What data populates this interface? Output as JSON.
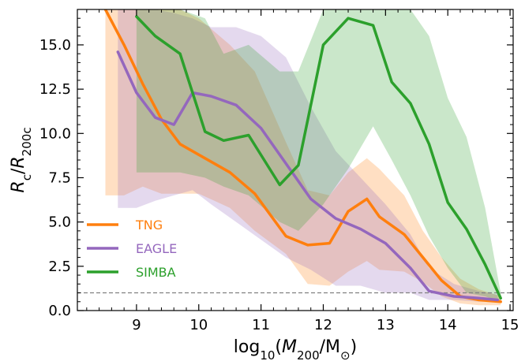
{
  "chart_data": {
    "type": "line",
    "xlabel": "log10(M200/M⊙)",
    "ylabel": "Rc/R200c",
    "xlim": [
      8.05,
      15.05
    ],
    "ylim": [
      0,
      17.0
    ],
    "x_ticks": [
      9,
      10,
      11,
      12,
      13,
      14,
      15
    ],
    "x_tick_labels": [
      "9",
      "10",
      "11",
      "12",
      "13",
      "14",
      "15"
    ],
    "x_minor_step": 0.2,
    "y_ticks": [
      0.0,
      2.5,
      5.0,
      7.5,
      10.0,
      12.5,
      15.0
    ],
    "y_tick_labels": [
      "0.0",
      "2.5",
      "5.0",
      "7.5",
      "10.0",
      "12.5",
      "15.0"
    ],
    "y_minor_step": 0.5,
    "grid": false,
    "legend_position": "lower-left",
    "reference_line": {
      "y": 1.0,
      "style": "dashed",
      "color": "#808080"
    },
    "series": [
      {
        "name": "TNG",
        "color": "#ff7f0e",
        "x": [
          8.5,
          8.8,
          9.1,
          9.4,
          9.7,
          10.0,
          10.5,
          10.9,
          11.4,
          11.75,
          12.1,
          12.4,
          12.7,
          12.9,
          13.3,
          13.6,
          13.9,
          14.2,
          14.5,
          14.85
        ],
        "y": [
          17.0,
          15.0,
          12.8,
          10.8,
          9.4,
          8.8,
          7.8,
          6.6,
          4.2,
          3.7,
          3.8,
          5.6,
          6.3,
          5.3,
          4.3,
          3.0,
          1.7,
          0.8,
          0.6,
          0.5
        ],
        "band_upper": [
          17.0,
          17.0,
          17.0,
          17.0,
          17.0,
          16.5,
          15.0,
          13.5,
          9.5,
          6.8,
          6.5,
          7.8,
          8.6,
          8.0,
          6.5,
          4.5,
          3.0,
          1.8,
          1.2,
          0.8
        ],
        "band_lower": [
          6.5,
          6.5,
          7.0,
          6.6,
          6.6,
          6.6,
          5.8,
          4.5,
          3.2,
          1.5,
          1.4,
          2.2,
          2.8,
          2.3,
          2.2,
          1.6,
          0.8,
          0.4,
          0.3,
          0.3
        ]
      },
      {
        "name": "EAGLE",
        "color": "#9467bd",
        "x": [
          8.7,
          9.0,
          9.3,
          9.6,
          9.9,
          10.2,
          10.6,
          11.0,
          11.4,
          11.8,
          12.2,
          12.6,
          13.0,
          13.4,
          13.7,
          14.1,
          14.5,
          14.8
        ],
        "y": [
          14.6,
          12.3,
          10.9,
          10.5,
          12.3,
          12.1,
          11.6,
          10.3,
          8.3,
          6.3,
          5.2,
          4.6,
          3.8,
          2.4,
          1.1,
          0.8,
          0.7,
          0.6
        ],
        "band_upper": [
          17.0,
          17.0,
          17.0,
          16.8,
          16.5,
          16.0,
          16.0,
          15.5,
          14.3,
          11.5,
          9.0,
          7.5,
          6.0,
          4.3,
          2.4,
          1.5,
          1.1,
          0.9
        ],
        "band_lower": [
          5.8,
          5.8,
          6.2,
          6.5,
          6.8,
          6.0,
          5.0,
          4.0,
          3.0,
          2.3,
          1.4,
          1.4,
          1.0,
          1.0,
          0.6,
          0.6,
          0.5,
          0.5
        ]
      },
      {
        "name": "SIMBA",
        "color": "#2ca02c",
        "x": [
          9.0,
          9.3,
          9.7,
          10.1,
          10.4,
          10.8,
          11.3,
          11.6,
          12.0,
          12.4,
          12.8,
          13.1,
          13.4,
          13.7,
          14.0,
          14.3,
          14.6,
          14.85
        ],
        "y": [
          16.6,
          15.5,
          14.5,
          10.1,
          9.6,
          9.9,
          7.1,
          8.2,
          15.0,
          16.5,
          16.1,
          12.9,
          11.7,
          9.4,
          6.1,
          4.6,
          2.6,
          0.7
        ],
        "band_upper": [
          17.0,
          17.0,
          17.0,
          16.5,
          14.5,
          15.0,
          13.5,
          13.5,
          17.0,
          17.0,
          17.0,
          17.0,
          17.0,
          15.5,
          12.0,
          9.8,
          5.8,
          1.0
        ],
        "band_lower": [
          7.8,
          7.8,
          7.8,
          7.5,
          7.0,
          6.5,
          5.0,
          4.5,
          6.0,
          8.0,
          10.4,
          8.5,
          6.5,
          4.2,
          2.4,
          1.0,
          0.8,
          0.5
        ]
      }
    ]
  }
}
